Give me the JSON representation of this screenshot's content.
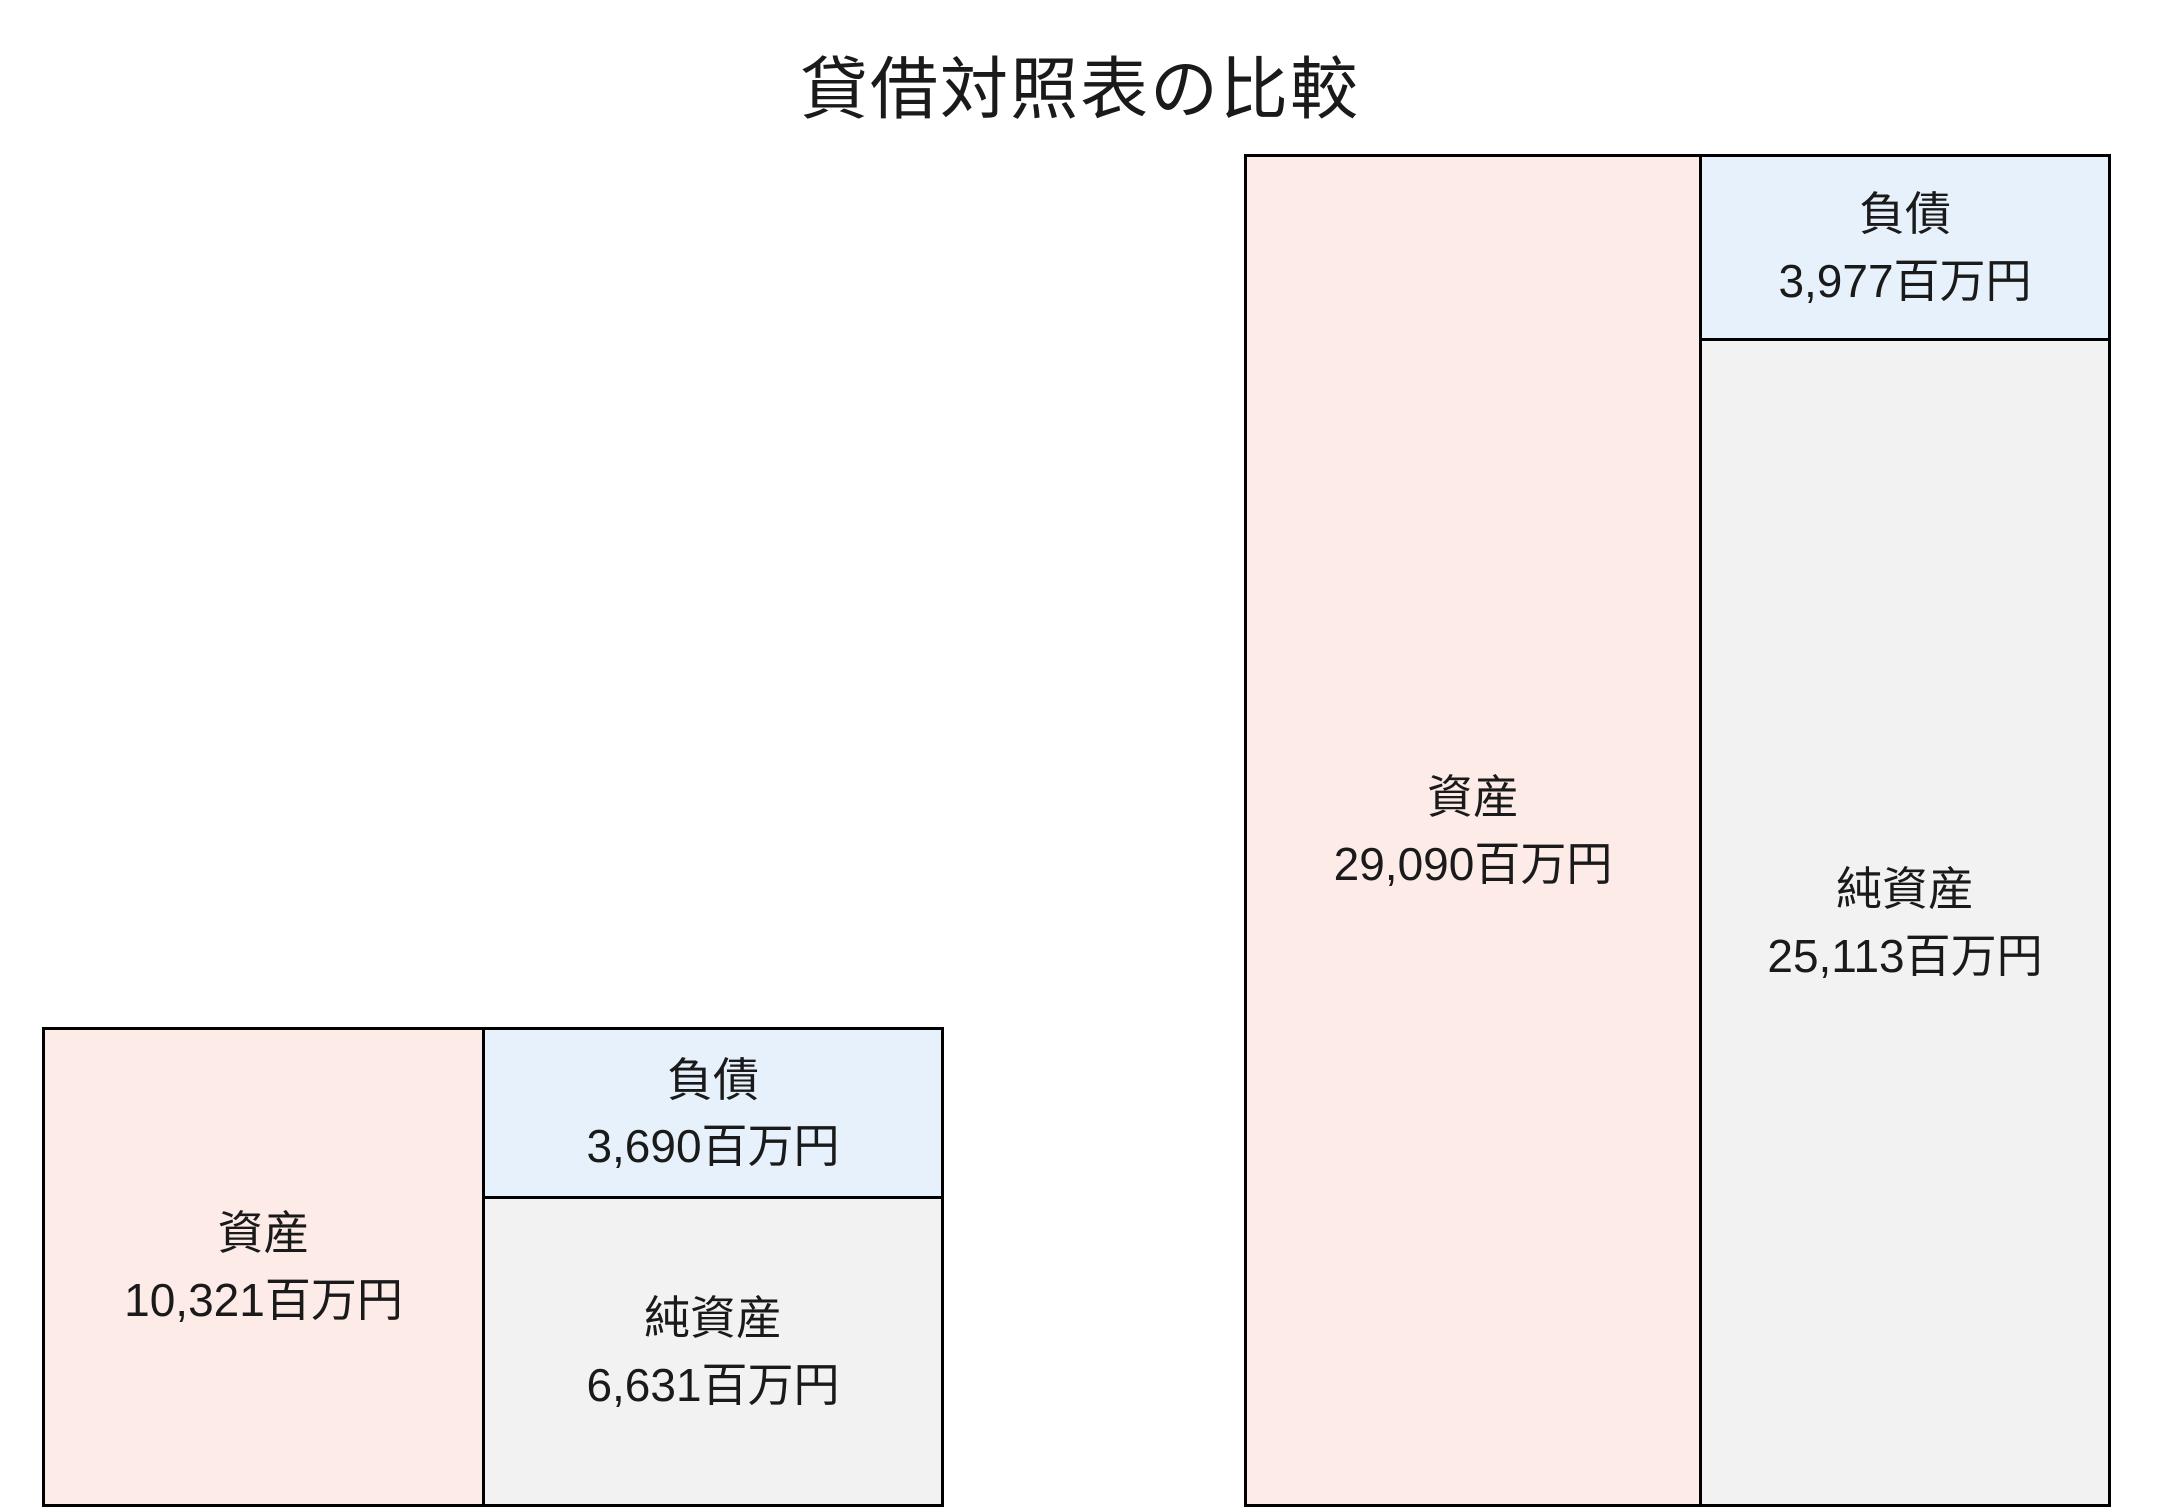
{
  "title": "貸借対照表の比較",
  "chart_data": {
    "type": "bar",
    "title": "貸借対照表の比較",
    "unit": "百万円",
    "layout": "two balance-sheet boxes, bottom-aligned, heights proportional to total assets",
    "colors": {
      "assets": "#fcebe7",
      "liabilities": "#e7f1fb",
      "net_assets": "#f2f2f2",
      "border": "#000000"
    },
    "balance_sheets": [
      {
        "assets": {
          "label": "資産",
          "value": 10321,
          "value_text": "10,321百万円"
        },
        "liabilities": {
          "label": "負債",
          "value": 3690,
          "value_text": "3,690百万円"
        },
        "net_assets": {
          "label": "純資産",
          "value": 6631,
          "value_text": "6,631百万円"
        }
      },
      {
        "assets": {
          "label": "資産",
          "value": 29090,
          "value_text": "29,090百万円"
        },
        "liabilities": {
          "label": "負債",
          "value": 3977,
          "value_text": "3,977百万円"
        },
        "net_assets": {
          "label": "純資産",
          "value": 25113,
          "value_text": "25,113百万円"
        }
      }
    ]
  }
}
